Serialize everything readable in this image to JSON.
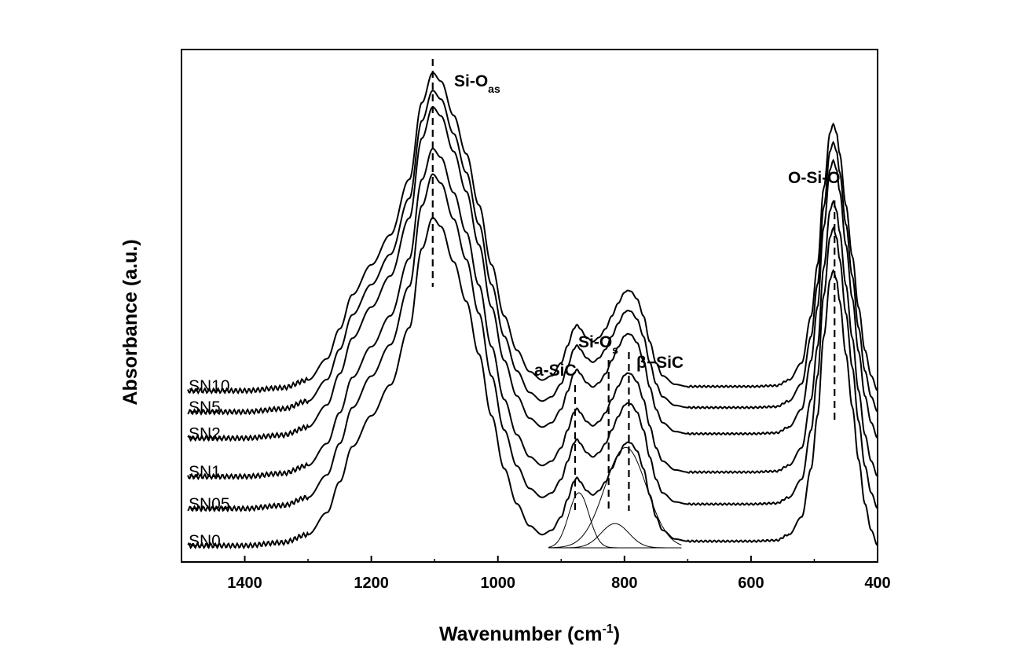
{
  "chart_data": {
    "type": "line",
    "title": "",
    "xlabel": "Wavenumber (cm",
    "xlabel_sup": "-1",
    "xlabel_end": ")",
    "ylabel": "Absorbance (a.u.)",
    "xlim": [
      1500,
      400
    ],
    "x_reversed": true,
    "ylim": [
      0,
      12
    ],
    "y_ticks_shown": false,
    "grid": false,
    "x_ticks": [
      {
        "value": 1400,
        "label": "1400"
      },
      {
        "value": 1200,
        "label": "1200"
      },
      {
        "value": 1000,
        "label": "1000"
      },
      {
        "value": 800,
        "label": "800"
      },
      {
        "value": 600,
        "label": "600"
      },
      {
        "value": 400,
        "label": "400"
      }
    ],
    "peak_annotations": [
      {
        "name": "si-o-as",
        "base": "Si-O",
        "sub": "as",
        "x": 1103
      },
      {
        "name": "a-sic",
        "base": "a-SiC",
        "sub": "",
        "x": 878
      },
      {
        "name": "si-o-s",
        "base": "Si-O",
        "sub": "s",
        "x": 825
      },
      {
        "name": "beta-sic",
        "base": "β−SiC",
        "sub": "",
        "x": 793
      },
      {
        "name": "o-si-o",
        "base": "O-Si-O",
        "sub": "",
        "x": 468
      }
    ],
    "series": [
      {
        "name": "SN0",
        "offset": 0.0,
        "scale": 1.0,
        "sio_shift": 0
      },
      {
        "name": "SN05",
        "offset": 0.84,
        "scale": 1.02,
        "sio_shift": 0
      },
      {
        "name": "SN1",
        "offset": 1.57,
        "scale": 1.0,
        "sio_shift": 0
      },
      {
        "name": "SN2",
        "offset": 2.44,
        "scale": 1.01,
        "sio_shift": 0
      },
      {
        "name": "SN5",
        "offset": 3.04,
        "scale": 0.98,
        "sio_shift": 0
      },
      {
        "name": "SN10",
        "offset": 3.52,
        "scale": 0.97,
        "sio_shift": 0
      }
    ],
    "base_profile": {
      "x": [
        1490,
        1400,
        1340,
        1300,
        1270,
        1250,
        1230,
        1200,
        1170,
        1140,
        1120,
        1103,
        1090,
        1070,
        1050,
        1030,
        1010,
        990,
        970,
        950,
        930,
        915,
        900,
        890,
        880,
        875,
        870,
        860,
        850,
        840,
        830,
        820,
        810,
        800,
        795,
        790,
        780,
        770,
        760,
        750,
        740,
        720,
        700,
        650,
        600,
        560,
        540,
        520,
        505,
        495,
        485,
        475,
        470,
        465,
        460,
        450,
        440,
        430,
        420,
        410,
        400
      ],
      "y": [
        0.05,
        0.05,
        0.12,
        0.3,
        0.8,
        1.5,
        2.3,
        3.0,
        3.7,
        5.0,
        6.8,
        7.5,
        7.3,
        6.5,
        5.6,
        4.4,
        3.0,
        1.8,
        1.0,
        0.5,
        0.3,
        0.4,
        0.7,
        1.1,
        1.5,
        1.6,
        1.5,
        1.3,
        1.2,
        1.3,
        1.5,
        1.8,
        2.1,
        2.35,
        2.4,
        2.38,
        2.2,
        1.8,
        1.2,
        0.7,
        0.4,
        0.2,
        0.15,
        0.15,
        0.15,
        0.17,
        0.3,
        0.7,
        1.8,
        3.0,
        4.8,
        6.1,
        6.3,
        6.1,
        5.6,
        4.4,
        3.2,
        2.0,
        1.0,
        0.4,
        0.05
      ]
    },
    "deconvolution": {
      "components": [
        {
          "name": "asic-component",
          "center": 872,
          "amp": 1.25,
          "sigma": 16
        },
        {
          "name": "bsic-component",
          "center": 798,
          "amp": 2.28,
          "sigma": 33
        },
        {
          "name": "sio-s-component",
          "center": 815,
          "amp": 0.55,
          "sigma": 22
        }
      ],
      "baseline_x": [
        920,
        710
      ]
    }
  }
}
